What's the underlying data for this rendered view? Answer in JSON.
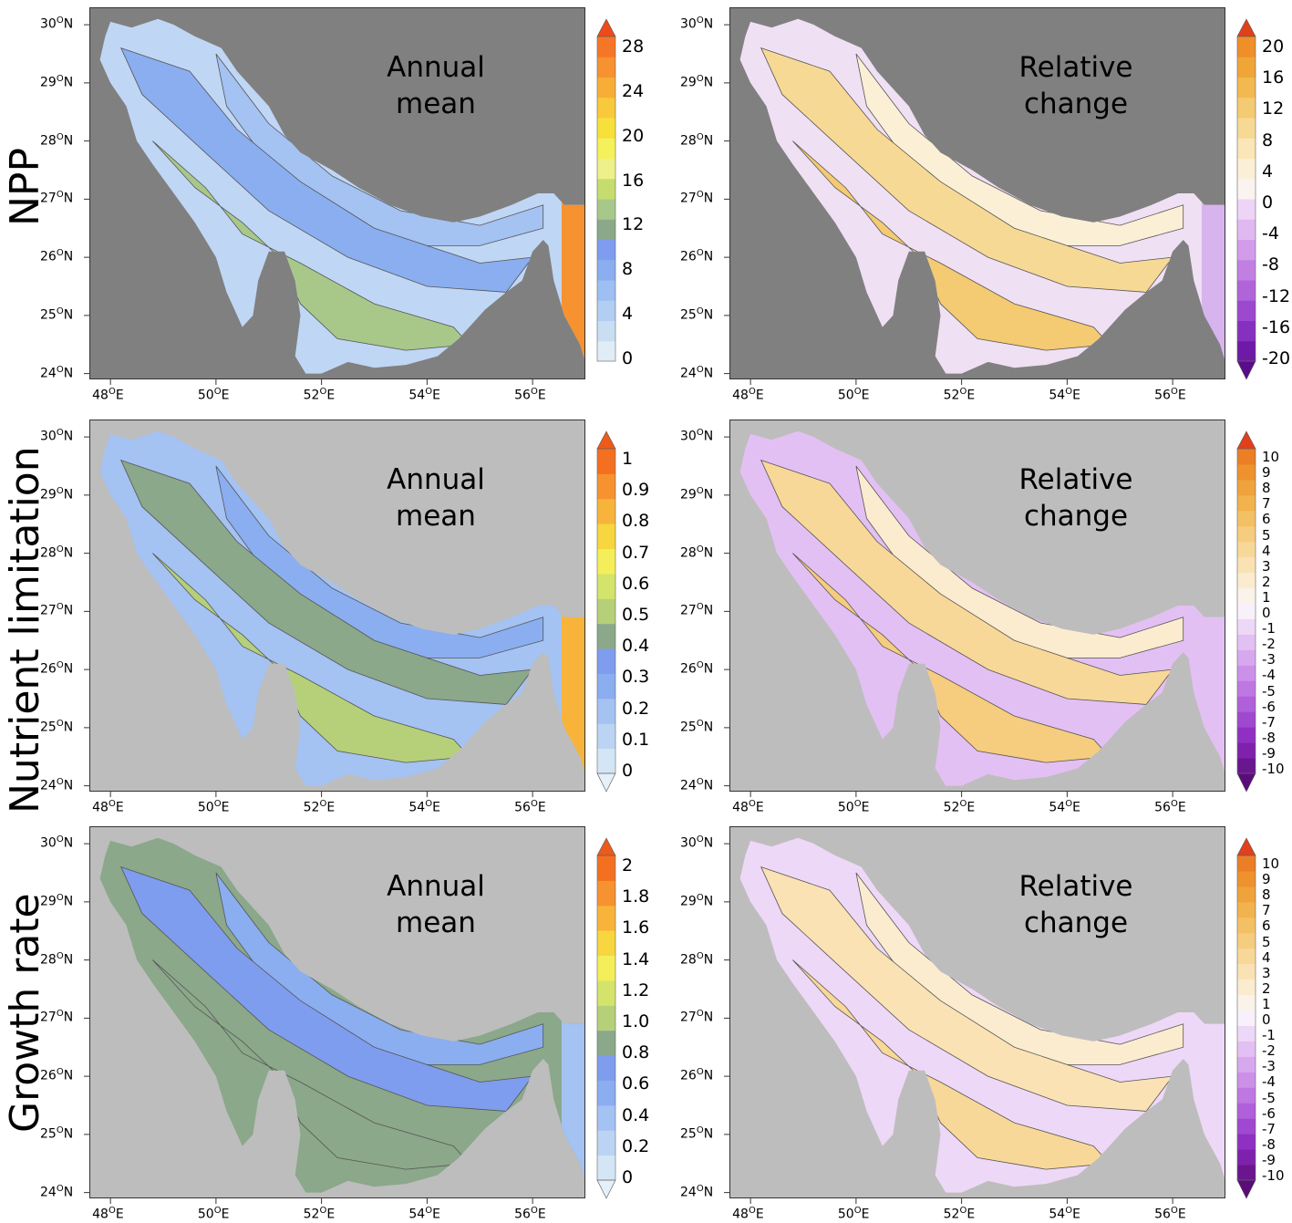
{
  "rows": [
    {
      "id": "npp",
      "label": "NPP"
    },
    {
      "id": "nutrient",
      "label": "Nutrient limitation"
    },
    {
      "id": "growth",
      "label": "Growth rate"
    }
  ],
  "panels": [
    {
      "id": "npp-mean",
      "row": 0,
      "col": 0,
      "title": [
        "Annual",
        "mean"
      ],
      "background": "#808080",
      "colorbar": {
        "type": "sequential",
        "labels": [
          "28",
          "24",
          "20",
          "16",
          "12",
          "8",
          "4",
          "0"
        ],
        "colors": [
          "#e0ecf6",
          "#c9ddf3",
          "#b3cef3",
          "#9dbff2",
          "#8aaef0",
          "#7f9dee",
          "#8ba88a",
          "#a8c88a",
          "#c6dd6e",
          "#eef08a",
          "#f5f15a",
          "#f7e03a",
          "#f8c93a",
          "#f8ae36",
          "#f79230",
          "#f67628"
        ],
        "max_arrow": "#ee4a1a",
        "min_arrow": null
      }
    },
    {
      "id": "npp-change",
      "row": 0,
      "col": 1,
      "title": [
        "Relative",
        "change"
      ],
      "background": "#808080",
      "colorbar": {
        "type": "diverging",
        "labels": [
          "20",
          "16",
          "12",
          "8",
          "4",
          "0",
          "-4",
          "-8",
          "-12",
          "-16",
          "-20"
        ],
        "colors": [
          "#6f1aa6",
          "#8630c0",
          "#9c48cf",
          "#b064da",
          "#c27fe2",
          "#d29ceb",
          "#e0b9f1",
          "#eed5f7",
          "#fbf3f0",
          "#fbefd6",
          "#faE6b6",
          "#f7d996",
          "#f4ca72",
          "#f1b94f",
          "#efa637",
          "#ee8f2a"
        ],
        "max_arrow": "#e0401a",
        "min_arrow": "#5a0d8a"
      }
    },
    {
      "id": "nut-mean",
      "row": 1,
      "col": 0,
      "title": [
        "Annual",
        "mean"
      ],
      "background": "#bdbdbd",
      "colorbar": {
        "type": "sequential",
        "labels": [
          "1",
          "0.9",
          "0.8",
          "0.7",
          "0.6",
          "0.5",
          "0.4",
          "0.3",
          "0.2",
          "0.1",
          "0"
        ],
        "colors": [
          "#d4e6f5",
          "#bcd4f3",
          "#a4c2f2",
          "#8aaef0",
          "#7f9dee",
          "#8ba88a",
          "#b6d07a",
          "#d4e46a",
          "#f4ee5a",
          "#f7d640",
          "#f8b43a",
          "#f79230",
          "#f47020"
        ],
        "max_arrow": "#ee5a1a",
        "min_arrow": "#e6f0f8"
      }
    },
    {
      "id": "nut-change",
      "row": 1,
      "col": 1,
      "title": [
        "Relative",
        "change"
      ],
      "background": "#bdbdbd",
      "colorbar": {
        "type": "diverging",
        "labels": [
          "10",
          "9",
          "8",
          "7",
          "6",
          "5",
          "4",
          "3",
          "2",
          "1",
          "0",
          "-1",
          "-2",
          "-3",
          "-4",
          "-5",
          "-6",
          "-7",
          "-8",
          "-9",
          "-10"
        ],
        "colors": [
          "#6a168f",
          "#7e22ad",
          "#9030c2",
          "#a048d0",
          "#b060da",
          "#bf78e2",
          "#cc90e8",
          "#d8a8ee",
          "#e3c0f3",
          "#eed8f7",
          "#f8f0fa",
          "#fbf3ea",
          "#fbeccf",
          "#fae2b4",
          "#f8d898",
          "#f6cc7e",
          "#f4c064",
          "#f2b24e",
          "#f0a23c",
          "#ee922e",
          "#ec7e26"
        ],
        "max_arrow": "#e0401a",
        "min_arrow": "#5a0d7a"
      }
    },
    {
      "id": "growth-mean",
      "row": 2,
      "col": 0,
      "title": [
        "Annual",
        "mean"
      ],
      "background": "#bdbdbd",
      "colorbar": {
        "type": "sequential",
        "labels": [
          "2",
          "1.8",
          "1.6",
          "1.4",
          "1.2",
          "1.0",
          "0.8",
          "0.6",
          "0.4",
          "0.2",
          "0"
        ],
        "colors": [
          "#d4e6f5",
          "#bcd4f3",
          "#a4c2f2",
          "#8aaef0",
          "#7f9dee",
          "#8ba88a",
          "#b6d07a",
          "#d4e46a",
          "#f4ee5a",
          "#f7d640",
          "#f8b43a",
          "#f79230",
          "#f47020"
        ],
        "max_arrow": "#ee5a1a",
        "min_arrow": "#e6f0f8"
      }
    },
    {
      "id": "growth-change",
      "row": 2,
      "col": 1,
      "title": [
        "Relative",
        "change"
      ],
      "background": "#bdbdbd",
      "colorbar": {
        "type": "diverging",
        "labels": [
          "10",
          "9",
          "8",
          "7",
          "6",
          "5",
          "4",
          "3",
          "2",
          "1",
          "0",
          "-1",
          "-2",
          "-3",
          "-4",
          "-5",
          "-6",
          "-7",
          "-8",
          "-9",
          "-10"
        ],
        "colors": [
          "#6a168f",
          "#7e22ad",
          "#9030c2",
          "#a048d0",
          "#b060da",
          "#bf78e2",
          "#cc90e8",
          "#d8a8ee",
          "#e3c0f3",
          "#eed8f7",
          "#f8f0fa",
          "#fbf3ea",
          "#fbeccf",
          "#fae2b4",
          "#f8d898",
          "#f6cc7e",
          "#f4c064",
          "#f2b24e",
          "#f0a23c",
          "#ee922e",
          "#ec7e26"
        ],
        "max_arrow": "#e0401a",
        "min_arrow": "#5a0d7a"
      }
    }
  ],
  "axes": {
    "lat_ticks": [
      {
        "value": 30,
        "text": "30",
        "deg": "O",
        "hemi": "N"
      },
      {
        "value": 29,
        "text": "29",
        "deg": "O",
        "hemi": "N"
      },
      {
        "value": 28,
        "text": "28",
        "deg": "O",
        "hemi": "N"
      },
      {
        "value": 27,
        "text": "27",
        "deg": "O",
        "hemi": "N"
      },
      {
        "value": 26,
        "text": "26",
        "deg": "O",
        "hemi": "N"
      },
      {
        "value": 25,
        "text": "25",
        "deg": "O",
        "hemi": "N"
      },
      {
        "value": 24,
        "text": "24",
        "deg": "O",
        "hemi": "N"
      }
    ],
    "lon_ticks": [
      {
        "value": 48,
        "text": "48",
        "deg": "O",
        "hemi": "E"
      },
      {
        "value": 50,
        "text": "50",
        "deg": "O",
        "hemi": "E"
      },
      {
        "value": 52,
        "text": "52",
        "deg": "O",
        "hemi": "E"
      },
      {
        "value": 54,
        "text": "54",
        "deg": "O",
        "hemi": "E"
      },
      {
        "value": 56,
        "text": "56",
        "deg": "O",
        "hemi": "E"
      }
    ]
  }
}
